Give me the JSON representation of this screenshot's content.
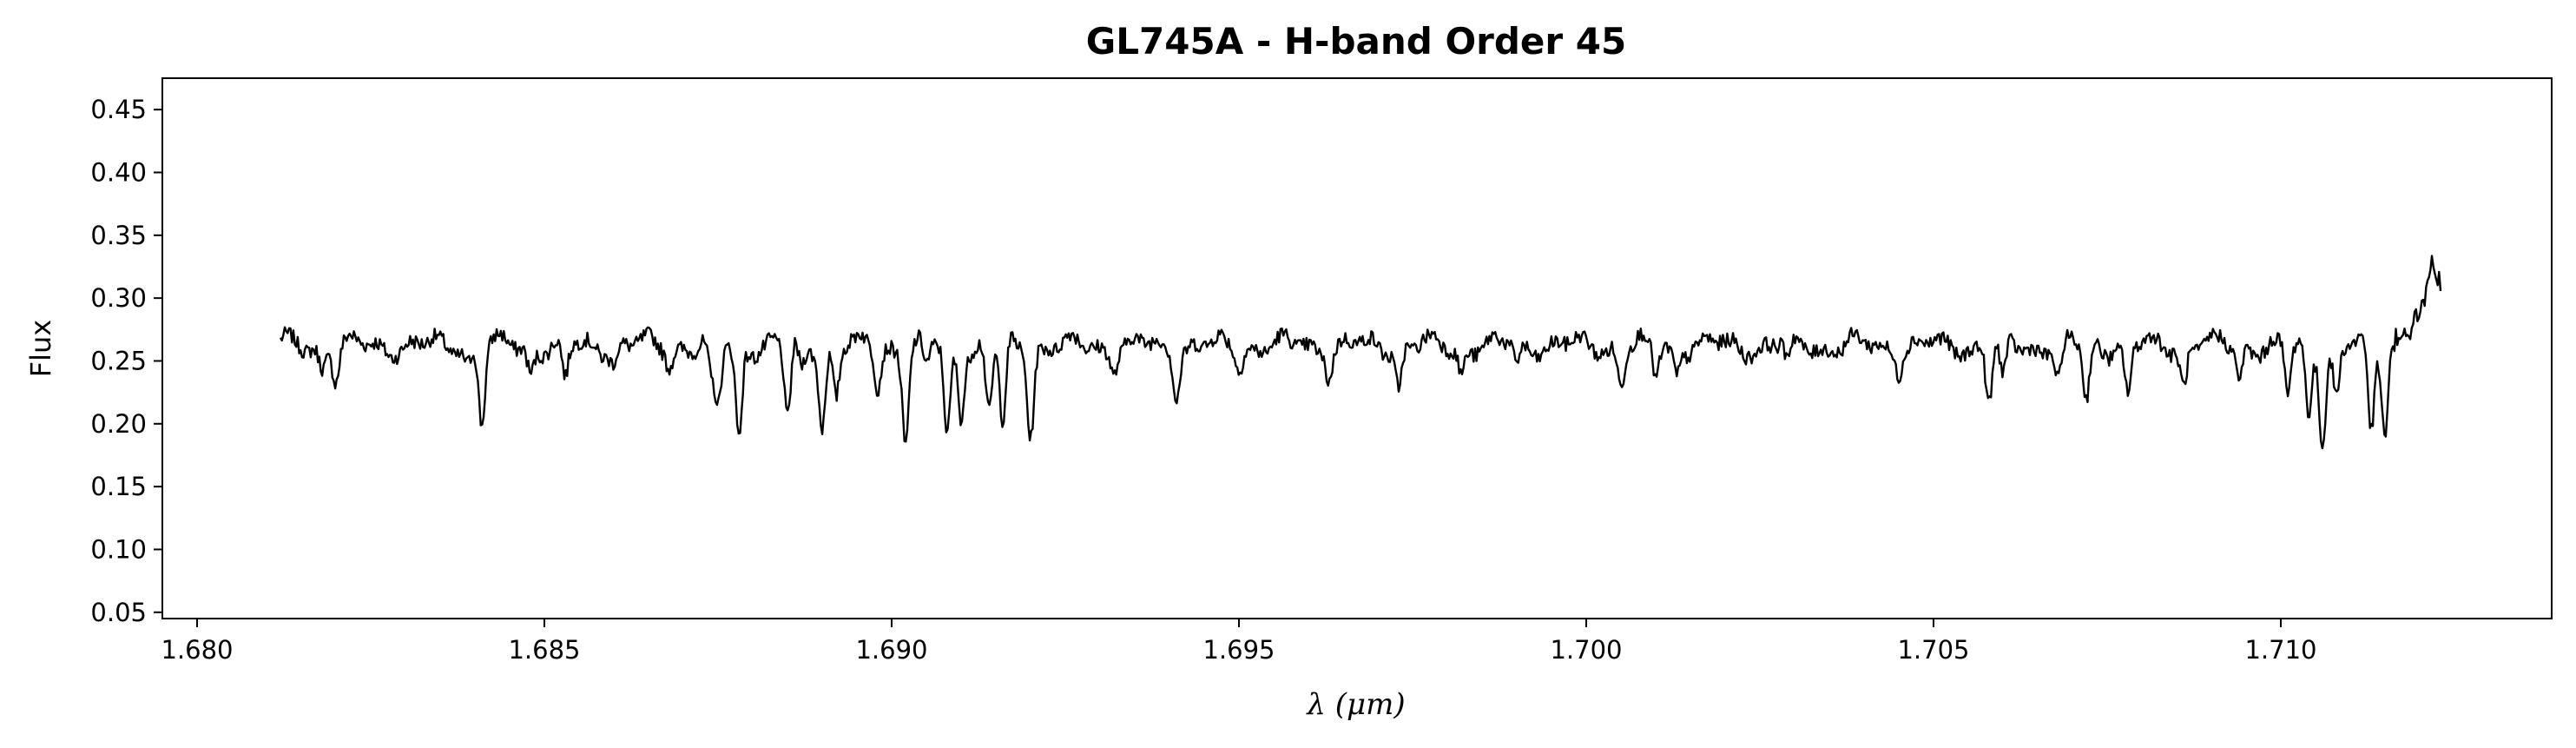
{
  "chart_data": {
    "type": "line",
    "title": "GL745A - H-band Order 45",
    "xlabel": "λ (μm)",
    "ylabel": "Flux",
    "xlim": [
      1.6795,
      1.7139
    ],
    "ylim": [
      0.045,
      0.475
    ],
    "x_ticks": [
      "1.680",
      "1.685",
      "1.690",
      "1.695",
      "1.700",
      "1.705",
      "1.710"
    ],
    "y_ticks": [
      "0.05",
      "0.10",
      "0.15",
      "0.20",
      "0.25",
      "0.30",
      "0.35",
      "0.40",
      "0.45"
    ],
    "grid": false,
    "series": [
      {
        "color": "#000000",
        "x_start": 1.6812,
        "x_end": 1.7123,
        "baseline": 0.262,
        "absorption_lines": [
          {
            "x": 1.6818,
            "depth": 0.015
          },
          {
            "x": 1.682,
            "depth": 0.025
          },
          {
            "x": 1.6839,
            "depth": 0.012
          },
          {
            "x": 1.6841,
            "depth": 0.06
          },
          {
            "x": 1.6848,
            "depth": 0.02
          },
          {
            "x": 1.6853,
            "depth": 0.03
          },
          {
            "x": 1.686,
            "depth": 0.01
          },
          {
            "x": 1.6868,
            "depth": 0.012
          },
          {
            "x": 1.6874,
            "depth": 0.03
          },
          {
            "x": 1.6875,
            "depth": 0.05
          },
          {
            "x": 1.6878,
            "depth": 0.072
          },
          {
            "x": 1.6885,
            "depth": 0.06
          },
          {
            "x": 1.6887,
            "depth": 0.02
          },
          {
            "x": 1.689,
            "depth": 0.06
          },
          {
            "x": 1.6892,
            "depth": 0.04
          },
          {
            "x": 1.6898,
            "depth": 0.03
          },
          {
            "x": 1.6902,
            "depth": 0.073
          },
          {
            "x": 1.6905,
            "depth": 0.02
          },
          {
            "x": 1.6908,
            "depth": 0.073
          },
          {
            "x": 1.691,
            "depth": 0.05
          },
          {
            "x": 1.6914,
            "depth": 0.055
          },
          {
            "x": 1.6916,
            "depth": 0.065
          },
          {
            "x": 1.692,
            "depth": 0.068
          },
          {
            "x": 1.6932,
            "depth": 0.015
          },
          {
            "x": 1.6941,
            "depth": 0.035
          },
          {
            "x": 1.695,
            "depth": 0.015
          },
          {
            "x": 1.6963,
            "depth": 0.02
          },
          {
            "x": 1.6973,
            "depth": 0.03
          },
          {
            "x": 1.6982,
            "depth": 0.02
          },
          {
            "x": 1.699,
            "depth": 0.015
          },
          {
            "x": 1.7005,
            "depth": 0.03
          },
          {
            "x": 1.701,
            "depth": 0.025
          },
          {
            "x": 1.7013,
            "depth": 0.02
          },
          {
            "x": 1.7029,
            "depth": 0.015
          },
          {
            "x": 1.7045,
            "depth": 0.015
          },
          {
            "x": 1.7058,
            "depth": 0.045
          },
          {
            "x": 1.706,
            "depth": 0.03
          },
          {
            "x": 1.7068,
            "depth": 0.03
          },
          {
            "x": 1.7072,
            "depth": 0.045
          },
          {
            "x": 1.7078,
            "depth": 0.04
          },
          {
            "x": 1.7086,
            "depth": 0.03
          },
          {
            "x": 1.7094,
            "depth": 0.025
          },
          {
            "x": 1.7101,
            "depth": 0.04
          },
          {
            "x": 1.7104,
            "depth": 0.055
          },
          {
            "x": 1.7106,
            "depth": 0.072
          },
          {
            "x": 1.7108,
            "depth": 0.04
          },
          {
            "x": 1.7113,
            "depth": 0.072
          },
          {
            "x": 1.7115,
            "depth": 0.07
          }
        ],
        "end_rise": {
          "x_from": 1.7115,
          "to_value": 0.3,
          "peak_x": 1.7122,
          "peak_value": 0.33
        }
      }
    ]
  }
}
